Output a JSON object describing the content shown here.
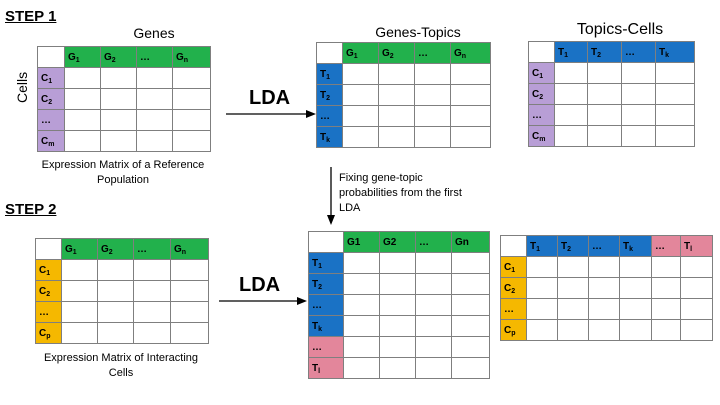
{
  "colors": {
    "gene_header": "#22b14c",
    "topic_header": "#1a72c5",
    "cell_ref": "#b89ed6",
    "cell_interacting": "#f5b800",
    "new_topic": "#e3869b",
    "grid_line": "#7f7f7f"
  },
  "step1": {
    "label": "STEP 1",
    "expression_matrix": {
      "title": "Genes",
      "row_axis_label": "Cells",
      "caption_line1": "Expression Matrix of a Reference",
      "caption_line2": "Population",
      "col_headers": [
        {
          "base": "G",
          "sub": "1"
        },
        {
          "base": "G",
          "sub": "2"
        },
        {
          "base": "…",
          "sub": ""
        },
        {
          "base": "G",
          "sub": "n"
        }
      ],
      "row_headers": [
        {
          "base": "C",
          "sub": "1"
        },
        {
          "base": "C",
          "sub": "2"
        },
        {
          "base": "…",
          "sub": ""
        },
        {
          "base": "C",
          "sub": "m"
        }
      ]
    },
    "arrow_label": "LDA",
    "genes_topics": {
      "title": "Genes-Topics",
      "col_headers": [
        {
          "base": "G",
          "sub": "1"
        },
        {
          "base": "G",
          "sub": "2"
        },
        {
          "base": "…",
          "sub": ""
        },
        {
          "base": "G",
          "sub": "n"
        }
      ],
      "row_headers": [
        {
          "base": "T",
          "sub": "1"
        },
        {
          "base": "T",
          "sub": "2"
        },
        {
          "base": "…",
          "sub": ""
        },
        {
          "base": "T",
          "sub": "k"
        }
      ]
    },
    "topics_cells": {
      "title": "Topics-Cells",
      "col_headers": [
        {
          "base": "T",
          "sub": "1"
        },
        {
          "base": "T",
          "sub": "2"
        },
        {
          "base": "…",
          "sub": ""
        },
        {
          "base": "T",
          "sub": "k"
        }
      ],
      "row_headers": [
        {
          "base": "C",
          "sub": "1"
        },
        {
          "base": "C",
          "sub": "2"
        },
        {
          "base": "…",
          "sub": ""
        },
        {
          "base": "C",
          "sub": "m"
        }
      ]
    }
  },
  "transfer_note": {
    "line1": "Fixing gene-topic",
    "line2": "probabilities from the first",
    "line3": "LDA"
  },
  "step2": {
    "label": "STEP 2",
    "expression_matrix": {
      "caption_line1": "Expression Matrix of Interacting",
      "caption_line2": "Cells",
      "col_headers": [
        {
          "base": "G",
          "sub": "1"
        },
        {
          "base": "G",
          "sub": "2"
        },
        {
          "base": "…",
          "sub": ""
        },
        {
          "base": "G",
          "sub": "n"
        }
      ],
      "row_headers": [
        {
          "base": "C",
          "sub": "1"
        },
        {
          "base": "C",
          "sub": "2"
        },
        {
          "base": "…",
          "sub": ""
        },
        {
          "base": "C",
          "sub": "p"
        }
      ]
    },
    "arrow_label": "LDA",
    "genes_topics": {
      "col_headers": [
        {
          "base": "G1",
          "sub": ""
        },
        {
          "base": "G2",
          "sub": ""
        },
        {
          "base": "…",
          "sub": ""
        },
        {
          "base": "Gn",
          "sub": ""
        }
      ],
      "row_headers": [
        {
          "base": "T",
          "sub": "1"
        },
        {
          "base": "T",
          "sub": "2"
        },
        {
          "base": "…",
          "sub": ""
        },
        {
          "base": "T",
          "sub": "k"
        },
        {
          "base": "…",
          "sub": ""
        },
        {
          "base": "T",
          "sub": "l"
        }
      ]
    },
    "topics_cells": {
      "col_headers": [
        {
          "base": "T",
          "sub": "1"
        },
        {
          "base": "T",
          "sub": "2"
        },
        {
          "base": "…",
          "sub": ""
        },
        {
          "base": "T",
          "sub": "k"
        },
        {
          "base": "…",
          "sub": ""
        },
        {
          "base": "T",
          "sub": "l"
        }
      ],
      "row_headers": [
        {
          "base": "C",
          "sub": "1"
        },
        {
          "base": "C",
          "sub": "2"
        },
        {
          "base": "…",
          "sub": ""
        },
        {
          "base": "C",
          "sub": "p"
        }
      ]
    }
  }
}
